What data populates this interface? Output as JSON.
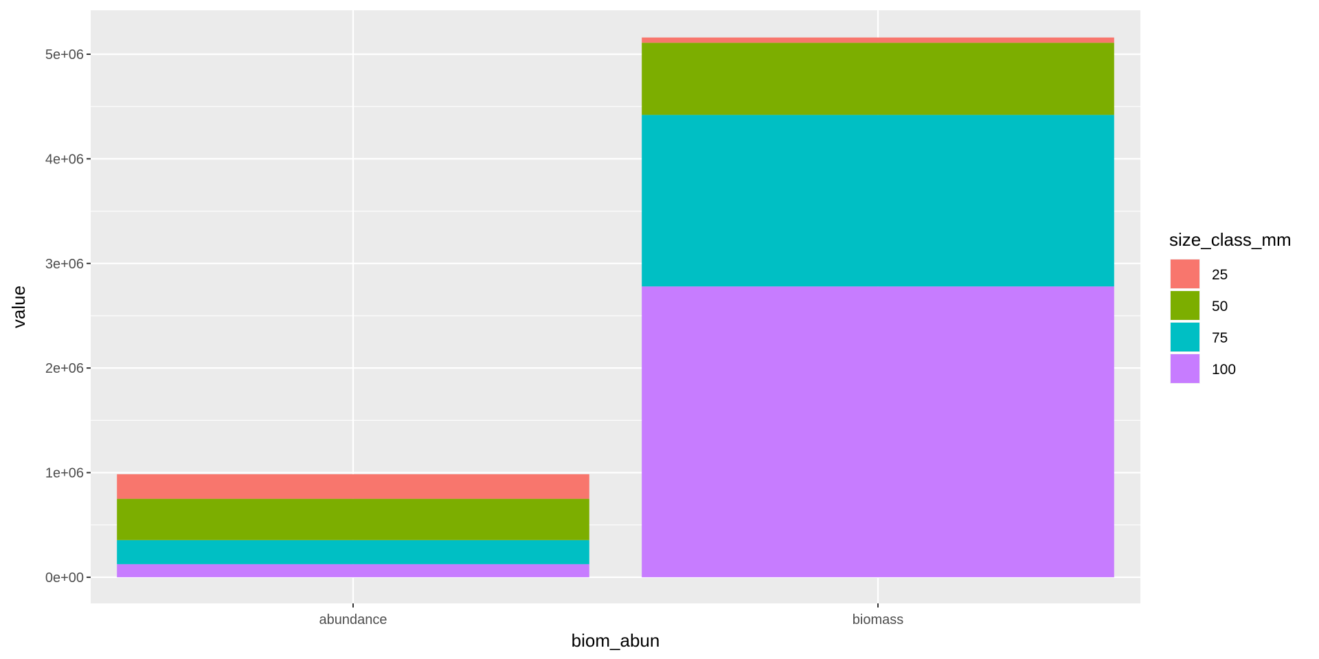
{
  "chart_data": {
    "type": "bar",
    "stacked": true,
    "title": "",
    "xlabel": "biom_abun",
    "ylabel": "value",
    "categories": [
      "abundance",
      "biomass"
    ],
    "series": [
      {
        "name": "25",
        "color": "#F8766D",
        "values": [
          235000,
          50000
        ]
      },
      {
        "name": "50",
        "color": "#7CAE00",
        "values": [
          395000,
          690000
        ]
      },
      {
        "name": "75",
        "color": "#00BFC4",
        "values": [
          230000,
          1640000
        ]
      },
      {
        "name": "100",
        "color": "#C77CFF",
        "values": [
          125000,
          2780000
        ]
      }
    ],
    "stack_order_bottom_to_top": [
      "100",
      "75",
      "50",
      "25"
    ],
    "ylim": [
      -250000,
      5420000
    ],
    "yticks": [
      0,
      1000000,
      2000000,
      3000000,
      4000000,
      5000000
    ],
    "ytick_labels": [
      "0e+00",
      "1e+06",
      "2e+06",
      "3e+06",
      "4e+06",
      "5e+06"
    ],
    "legend": {
      "title": "size_class_mm",
      "position": "right",
      "items": [
        "25",
        "50",
        "75",
        "100"
      ]
    },
    "grid": true,
    "panel_background": "#EBEBEB"
  }
}
